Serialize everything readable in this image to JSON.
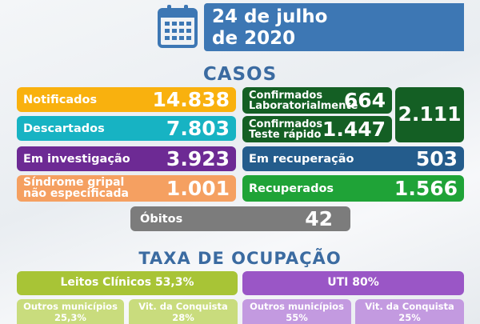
{
  "header": {
    "date_line1": "24 de julho",
    "date_line2": "de 2020",
    "calendar_icon": "calendar-icon",
    "banner_color": "#3d77b4"
  },
  "cases": {
    "title": "CASOS",
    "notificados": {
      "label": "Notificados",
      "value": "14.838"
    },
    "descartados": {
      "label": "Descartados",
      "value": "7.803"
    },
    "em_investigacao": {
      "label": "Em investigação",
      "value": "3.923"
    },
    "sindrome": {
      "label_line1": "Síndrome gripal",
      "label_line2": "não especificada",
      "value": "1.001"
    },
    "confirmados_lab": {
      "label_line1": "Confirmados",
      "label_line2": "Laboratorialmente",
      "value": "664"
    },
    "confirmados_teste": {
      "label_line1": "Confirmados",
      "label_line2": "Teste rápido",
      "value": "1.447"
    },
    "confirmados_total": {
      "value": "2.111"
    },
    "em_recuperacao": {
      "label": "Em recuperação",
      "value": "503"
    },
    "recuperados": {
      "label": "Recuperados",
      "value": "1.566"
    },
    "obitos": {
      "label": "Óbitos",
      "value": "42"
    }
  },
  "occupancy": {
    "title": "TAXA DE OCUPAÇÃO",
    "leitos": {
      "label": "Leitos Clínicos 53,3%",
      "outros": {
        "label": "Outros municípios",
        "value": "25,3%"
      },
      "vitoria": {
        "label": "Vit. da Conquista",
        "value": "28%"
      }
    },
    "uti": {
      "label": "UTI 80%",
      "outros": {
        "label": "Outros municípios",
        "value": "55%"
      },
      "vitoria": {
        "label": "Vit. da Conquista",
        "value": "25%"
      }
    }
  }
}
